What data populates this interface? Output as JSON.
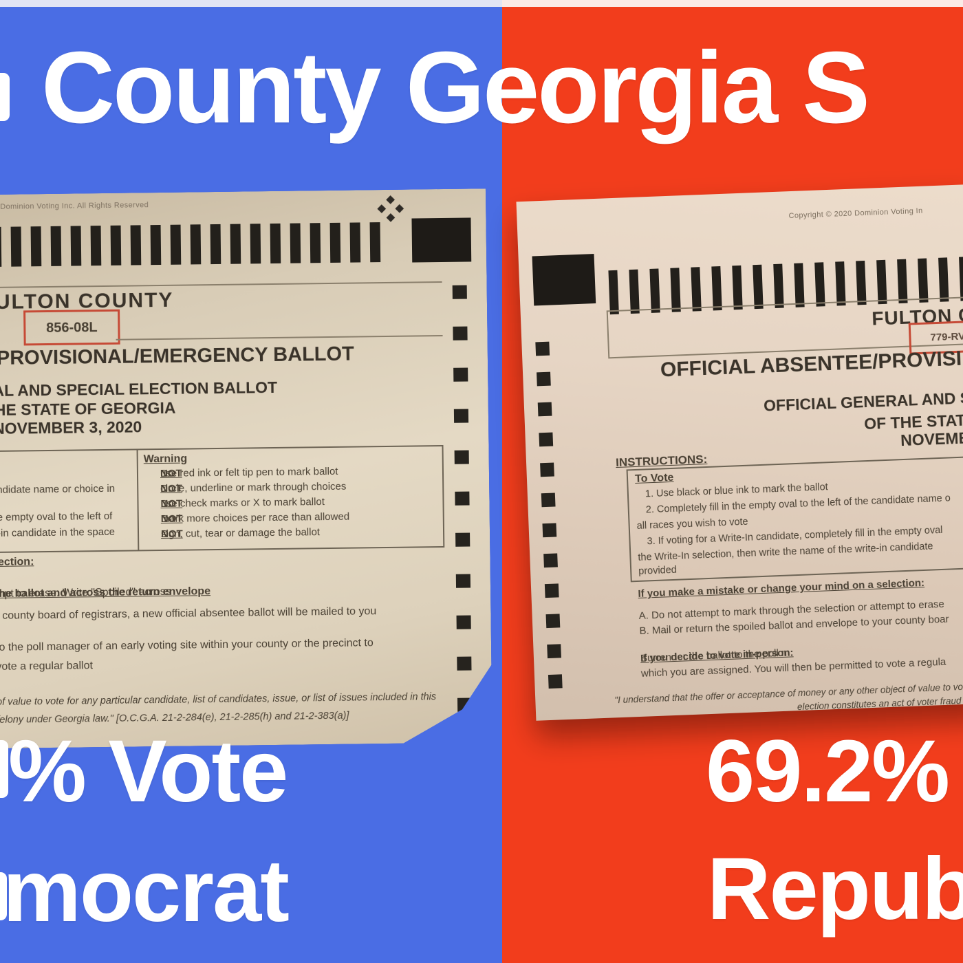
{
  "colors": {
    "panel_blue": "#4a6de4",
    "panel_red": "#f23d1c",
    "caption_text": "#ffffff",
    "paper_tan": "#e0d2bd",
    "ballot_ink": "#4a4134",
    "serial_box_red": "#c64a36"
  },
  "title": {
    "text": "County Georgia S"
  },
  "left_panel": {
    "stat_percent": "% Vote",
    "stat_party": "mocrat",
    "ballot": {
      "copyright": "0 Dominion Voting Inc.  All Rights Reserved",
      "county": "ULTON COUNTY",
      "ballot_code": "856-08L",
      "heading": "PROVISIONAL/EMERGENCY BALLOT",
      "subheading1": "AL AND SPECIAL ELECTION BALLOT",
      "subheading2": "HE STATE OF GEORGIA",
      "subheading3": "NOVEMBER 3, 2020",
      "instructions_left_fragments": [
        "ndidate name or choice in",
        "e empty oval to the left of",
        "-in candidate in the space"
      ],
      "warning_title": "Warning",
      "warning_items": [
        {
          "pre": "Do ",
          "neg": "NOT",
          "rest": " use red ink or felt tip pen to mark ballot"
        },
        {
          "pre": "Do ",
          "neg": "NOT",
          "rest": " circle, underline or mark through choices"
        },
        {
          "pre": "Do ",
          "neg": "NOT",
          "rest": " use check marks or X to mark ballot"
        },
        {
          "pre": "Do ",
          "neg": "NOT",
          "rest": " mark more choices per race than allowed"
        },
        {
          "pre": "Do ",
          "neg": "NOT",
          "rest": " sign, cut, tear or damage the ballot"
        }
      ],
      "selection_heading_fragment": "lection:",
      "para1_plain": "mpt to erase.  Write \"Spoiled\" across ",
      "para1_underlined": "the ballot and across the return envelope",
      "para1_line2": "r county board of registrars, a new official absentee ballot will be mailed to you",
      "para2_line1": "to the poll manager of an early voting site within your county or the precinct to",
      "para2_line2": "vote a regular ballot",
      "legal_line1": "of value to vote for any particular candidate, list of candidates, issue, or list of issues included in this",
      "legal_line2": "felony under Georgia law.\" [O.C.G.A. 21-2-284(e), 21-2-285(h) and 21-2-383(a)]"
    }
  },
  "right_panel": {
    "stat_percent": "69.2%",
    "stat_party": "Repub",
    "ballot": {
      "copyright": "Copyright © 2020 Dominion Voting In",
      "county": "FULTON C",
      "ballot_code": "779-RV",
      "heading": "OFFICIAL ABSENTEE/PROVISI",
      "subheading1": "OFFICIAL GENERAL AND SP",
      "subheading2": "OF THE STATE",
      "subheading3": "NOVEMBE",
      "instructions_label": "INSTRUCTIONS:",
      "to_vote_title": "To Vote",
      "to_vote_items": [
        "1. Use black or blue ink to mark the ballot",
        "2. Completely fill in the empty oval to the left of the candidate name o",
        "all races you wish to vote",
        "3. If voting for a Write-In candidate, completely fill in the empty oval",
        "the Write-In selection, then write the name of the write-in candidate",
        "provided"
      ],
      "mistake_heading": "If you make a mistake or change your mind on a selection:",
      "mistake_item_a": "A. Do not attempt to mark through the selection or attempt to erase",
      "mistake_item_b": "B. Mail or return the spoiled ballot and envelope to your county boar",
      "in_person_heading": "If you decide to vote in-person:",
      "in_person_rest": "  Surrender the ballot to the poll m",
      "in_person_line2": "which you are assigned.  You will then be permitted to vote a regula",
      "legal_line1": "\"I understand that the offer or acceptance of money or any other object of value to vo",
      "legal_line2": "election constitutes an act of voter fraud and is a felony under G"
    }
  }
}
